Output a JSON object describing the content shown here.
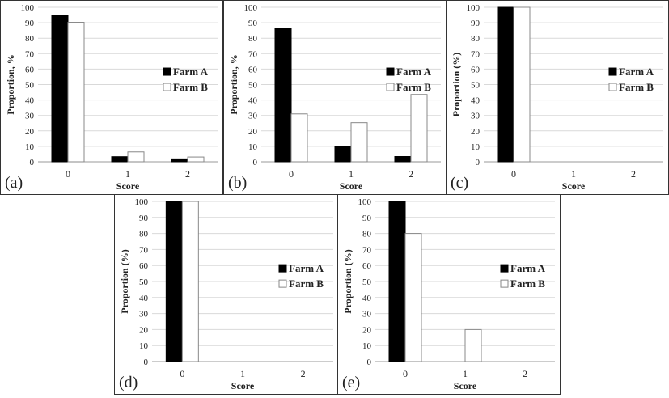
{
  "chart_data": [
    {
      "type": "bar",
      "panel_label": "(a)",
      "ylabel": "Proportion, %",
      "xlabel": "Score",
      "categories": [
        "0",
        "1",
        "2"
      ],
      "ylim": [
        0,
        100
      ],
      "yticks": [
        0,
        10,
        20,
        30,
        40,
        50,
        60,
        70,
        80,
        90,
        100
      ],
      "legend_position": "right",
      "series": [
        {
          "name": "Farm A",
          "color": "#000000",
          "values": [
            94.5,
            3.3,
            1.9
          ]
        },
        {
          "name": "Farm B",
          "color": "#ffffff",
          "values": [
            90.3,
            6.4,
            3.1
          ]
        }
      ]
    },
    {
      "type": "bar",
      "panel_label": "(b)",
      "ylabel": "Proportion, %",
      "xlabel": "Score",
      "categories": [
        "0",
        "1",
        "2"
      ],
      "ylim": [
        0,
        100
      ],
      "yticks": [
        0,
        10,
        20,
        30,
        40,
        50,
        60,
        70,
        80,
        90,
        100
      ],
      "legend_position": "right",
      "series": [
        {
          "name": "Farm A",
          "color": "#000000",
          "values": [
            86.5,
            9.8,
            3.4
          ]
        },
        {
          "name": "Farm B",
          "color": "#ffffff",
          "values": [
            31.0,
            25.3,
            43.6
          ]
        }
      ]
    },
    {
      "type": "bar",
      "panel_label": "(c)",
      "ylabel": "Proportion (%)",
      "xlabel": "Score",
      "categories": [
        "0",
        "1",
        "2"
      ],
      "ylim": [
        0,
        100
      ],
      "yticks": [
        0,
        10,
        20,
        30,
        40,
        50,
        60,
        70,
        80,
        90,
        100
      ],
      "legend_position": "right",
      "series": [
        {
          "name": "Farm A",
          "color": "#000000",
          "values": [
            100,
            0,
            0
          ]
        },
        {
          "name": "Farm B",
          "color": "#ffffff",
          "values": [
            100,
            0,
            0
          ]
        }
      ]
    },
    {
      "type": "bar",
      "panel_label": "(d)",
      "ylabel": "Proportion (%)",
      "xlabel": "Score",
      "categories": [
        "0",
        "1",
        "2"
      ],
      "ylim": [
        0,
        100
      ],
      "yticks": [
        0,
        10,
        20,
        30,
        40,
        50,
        60,
        70,
        80,
        90,
        100
      ],
      "legend_position": "right",
      "series": [
        {
          "name": "Farm A",
          "color": "#000000",
          "values": [
            100,
            0,
            0
          ]
        },
        {
          "name": "Farm B",
          "color": "#ffffff",
          "values": [
            100,
            0,
            0
          ]
        }
      ]
    },
    {
      "type": "bar",
      "panel_label": "(e)",
      "ylabel": "Proportion (%)",
      "xlabel": "Score",
      "categories": [
        "0",
        "1",
        "2"
      ],
      "ylim": [
        0,
        100
      ],
      "yticks": [
        0,
        10,
        20,
        30,
        40,
        50,
        60,
        70,
        80,
        90,
        100
      ],
      "legend_position": "right",
      "series": [
        {
          "name": "Farm A",
          "color": "#000000",
          "values": [
            100,
            0,
            0
          ]
        },
        {
          "name": "Farm B",
          "color": "#ffffff",
          "values": [
            80,
            20,
            0
          ]
        }
      ]
    }
  ]
}
